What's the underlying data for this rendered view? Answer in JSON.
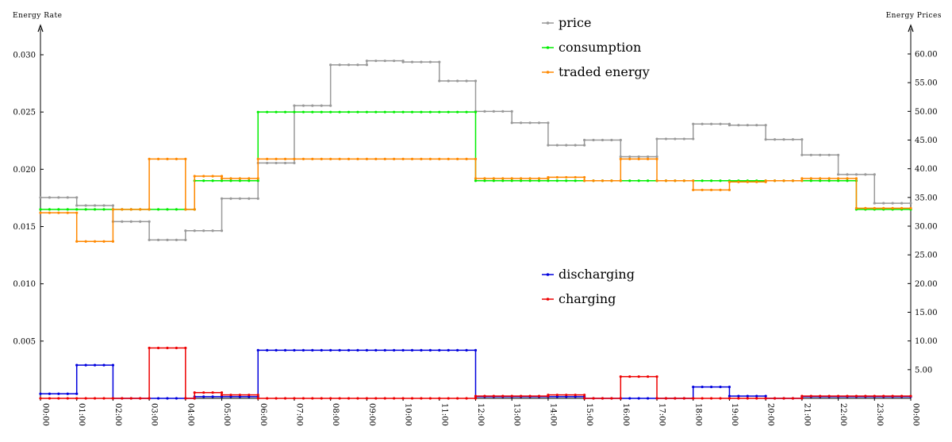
{
  "chart_data": {
    "type": "line",
    "step": true,
    "left_axis": {
      "title": "Energy Rate",
      "range": [
        0,
        0.03
      ],
      "ticks": [
        "0.005",
        "0.010",
        "0.015",
        "0.020",
        "0.025",
        "0.030"
      ]
    },
    "right_axis": {
      "title": "Energy Prices",
      "range": [
        0,
        60
      ],
      "ticks": [
        "5.00",
        "10.00",
        "15.00",
        "20.00",
        "25.00",
        "30.00",
        "35.00",
        "40.00",
        "45.00",
        "50.00",
        "55.00",
        "60.00"
      ]
    },
    "x_tick_labels": [
      "00:00",
      "01:00",
      "02:00",
      "03:00",
      "04:00",
      "05:00",
      "06:00",
      "07:00",
      "08:00",
      "09:00",
      "10:00",
      "11:00",
      "12:00",
      "13:00",
      "14:00",
      "15:00",
      "16:00",
      "17:00",
      "18:00",
      "19:00",
      "20:00",
      "21:00",
      "22:00",
      "23:00",
      "00:00"
    ],
    "x_range_hours": [
      0,
      24
    ],
    "grid": false,
    "legend": [
      {
        "name": "price",
        "color": "#999999"
      },
      {
        "name": "consumption",
        "color": "#00ee00"
      },
      {
        "name": "traded energy",
        "color": "#ff8800"
      },
      {
        "name": "discharging",
        "color": "#0000dd"
      },
      {
        "name": "charging",
        "color": "#ee0000"
      }
    ],
    "series": [
      {
        "name": "price",
        "axis": "right",
        "color": "#999999",
        "segments": [
          [
            0,
            1,
            35.0
          ],
          [
            1,
            2,
            33.6
          ],
          [
            2,
            3,
            30.8
          ],
          [
            3,
            4,
            27.6
          ],
          [
            4,
            5,
            29.2
          ],
          [
            5,
            6,
            34.8
          ],
          [
            6,
            7,
            41.0
          ],
          [
            7,
            8,
            51.0
          ],
          [
            8,
            9,
            58.1
          ],
          [
            9,
            10,
            58.8
          ],
          [
            10,
            11,
            58.6
          ],
          [
            11,
            12,
            55.3
          ],
          [
            12,
            13,
            50.0
          ],
          [
            13,
            14,
            48.0
          ],
          [
            14,
            15,
            44.1
          ],
          [
            15,
            16,
            45.0
          ],
          [
            16,
            17,
            42.1
          ],
          [
            17,
            18,
            45.2
          ],
          [
            18,
            19,
            47.8
          ],
          [
            19,
            20,
            47.6
          ],
          [
            20,
            21,
            45.1
          ],
          [
            21,
            22,
            42.4
          ],
          [
            22,
            23,
            39.0
          ],
          [
            23,
            24,
            34.0
          ]
        ]
      },
      {
        "name": "consumption",
        "axis": "left",
        "color": "#00ee00",
        "segments": [
          [
            0,
            4.25,
            0.0165
          ],
          [
            4.25,
            6,
            0.019
          ],
          [
            6,
            12,
            0.025
          ],
          [
            12,
            22.5,
            0.019
          ],
          [
            22.5,
            24,
            0.0165
          ]
        ]
      },
      {
        "name": "traded energy",
        "axis": "left",
        "color": "#ff8800",
        "segments": [
          [
            0,
            1,
            0.0162
          ],
          [
            1,
            2,
            0.0137
          ],
          [
            2,
            3,
            0.0165
          ],
          [
            3,
            4,
            0.0209
          ],
          [
            4,
            4.25,
            0.0165
          ],
          [
            4.25,
            5,
            0.0194
          ],
          [
            5,
            6,
            0.0192
          ],
          [
            6,
            12,
            0.0209
          ],
          [
            12,
            14,
            0.0192
          ],
          [
            14,
            15,
            0.0193
          ],
          [
            15,
            16,
            0.019
          ],
          [
            16,
            17,
            0.0209
          ],
          [
            17,
            18,
            0.019
          ],
          [
            18,
            19,
            0.0182
          ],
          [
            19,
            20,
            0.0189
          ],
          [
            20,
            21,
            0.019
          ],
          [
            21,
            22.5,
            0.0192
          ],
          [
            22.5,
            24,
            0.0166
          ]
        ]
      },
      {
        "name": "discharging",
        "axis": "left",
        "color": "#0000dd",
        "segments": [
          [
            0,
            1,
            0.0004
          ],
          [
            1,
            2,
            0.0029
          ],
          [
            2,
            4.25,
            0.0
          ],
          [
            4.25,
            6,
            0.00015
          ],
          [
            6,
            12,
            0.0042
          ],
          [
            12,
            15,
            0.00015
          ],
          [
            15,
            18,
            0.0
          ],
          [
            18,
            19,
            0.001
          ],
          [
            19,
            20,
            0.0002
          ],
          [
            20,
            21,
            0.0
          ],
          [
            21,
            24,
            0.00015
          ]
        ]
      },
      {
        "name": "charging",
        "axis": "left",
        "color": "#ee0000",
        "segments": [
          [
            0,
            3,
            0.0
          ],
          [
            3,
            4,
            0.0044
          ],
          [
            4,
            4.25,
            0.0
          ],
          [
            4.25,
            5,
            0.0005
          ],
          [
            5,
            6,
            0.0003
          ],
          [
            6,
            12,
            0.0
          ],
          [
            12,
            14,
            0.0002
          ],
          [
            14,
            15,
            0.0003
          ],
          [
            15,
            16,
            0.0
          ],
          [
            16,
            17,
            0.0019
          ],
          [
            17,
            21,
            0.0
          ],
          [
            21,
            24,
            0.0002
          ]
        ]
      }
    ]
  }
}
